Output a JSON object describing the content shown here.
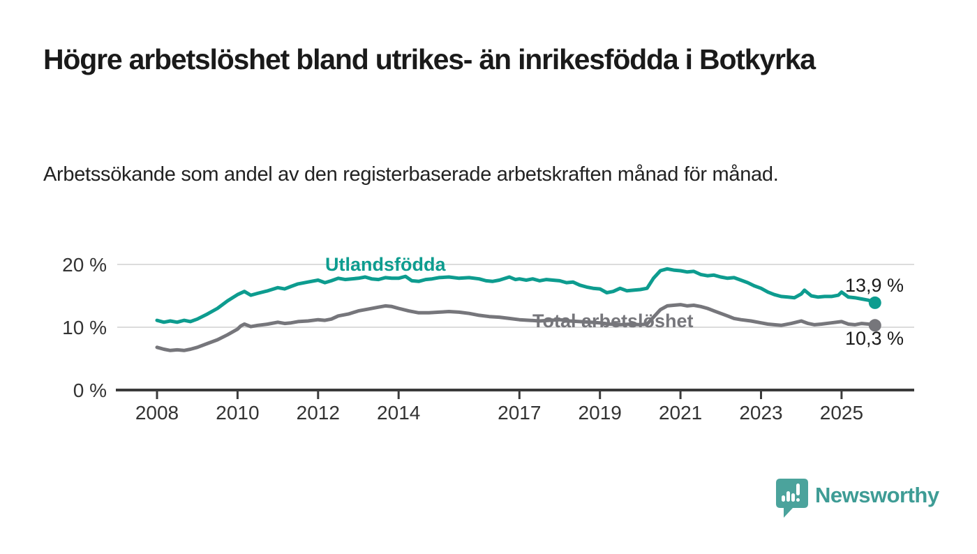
{
  "chart_data": {
    "type": "line",
    "title": "Högre arbetslöshet bland utrikes- än inrikesfödda i Botkyrka",
    "subtitle": "Arbetssökande som andel av den registerbaserade arbetskraften månad för månad.",
    "xlabel": "",
    "ylabel": "",
    "unit": "%",
    "ylim": [
      0,
      21.5
    ],
    "x_range": [
      2008.0,
      2025.83
    ],
    "grid": "horizontal",
    "legend_position": "inline-labels",
    "y_ticks": [
      {
        "value": 0,
        "label": "0 %"
      },
      {
        "value": 10,
        "label": "10 %"
      },
      {
        "value": 20,
        "label": "20 %"
      }
    ],
    "x_ticks": [
      {
        "year": 2008,
        "label": "2008"
      },
      {
        "year": 2010,
        "label": "2010"
      },
      {
        "year": 2012,
        "label": "2012"
      },
      {
        "year": 2014,
        "label": "2014"
      },
      {
        "year": 2017,
        "label": "2017"
      },
      {
        "year": 2019,
        "label": "2019"
      },
      {
        "year": 2021,
        "label": "2021"
      },
      {
        "year": 2023,
        "label": "2023"
      },
      {
        "year": 2025,
        "label": "2025"
      }
    ],
    "series": [
      {
        "name": "Utlandsfödda",
        "color": "#0d9c8f",
        "end_label": "13,9 %",
        "end_value": 13.9,
        "points": [
          [
            2008.0,
            11.1
          ],
          [
            2008.17,
            10.8
          ],
          [
            2008.33,
            11.0
          ],
          [
            2008.5,
            10.8
          ],
          [
            2008.67,
            11.1
          ],
          [
            2008.83,
            10.9
          ],
          [
            2009.0,
            11.3
          ],
          [
            2009.25,
            12.1
          ],
          [
            2009.5,
            13.0
          ],
          [
            2009.75,
            14.2
          ],
          [
            2010.0,
            15.2
          ],
          [
            2010.17,
            15.7
          ],
          [
            2010.33,
            15.1
          ],
          [
            2010.5,
            15.4
          ],
          [
            2010.75,
            15.8
          ],
          [
            2011.0,
            16.3
          ],
          [
            2011.17,
            16.1
          ],
          [
            2011.33,
            16.5
          ],
          [
            2011.5,
            16.9
          ],
          [
            2011.75,
            17.2
          ],
          [
            2012.0,
            17.5
          ],
          [
            2012.17,
            17.1
          ],
          [
            2012.33,
            17.4
          ],
          [
            2012.5,
            17.8
          ],
          [
            2012.67,
            17.6
          ],
          [
            2012.83,
            17.7
          ],
          [
            2013.0,
            17.8
          ],
          [
            2013.17,
            18.0
          ],
          [
            2013.33,
            17.7
          ],
          [
            2013.5,
            17.6
          ],
          [
            2013.67,
            17.9
          ],
          [
            2013.83,
            17.8
          ],
          [
            2014.0,
            17.8
          ],
          [
            2014.17,
            18.1
          ],
          [
            2014.33,
            17.4
          ],
          [
            2014.5,
            17.3
          ],
          [
            2014.67,
            17.6
          ],
          [
            2014.83,
            17.7
          ],
          [
            2015.0,
            17.9
          ],
          [
            2015.25,
            18.0
          ],
          [
            2015.5,
            17.8
          ],
          [
            2015.75,
            17.9
          ],
          [
            2016.0,
            17.7
          ],
          [
            2016.17,
            17.4
          ],
          [
            2016.33,
            17.3
          ],
          [
            2016.5,
            17.5
          ],
          [
            2016.75,
            18.0
          ],
          [
            2016.9,
            17.6
          ],
          [
            2017.0,
            17.7
          ],
          [
            2017.17,
            17.5
          ],
          [
            2017.33,
            17.7
          ],
          [
            2017.5,
            17.4
          ],
          [
            2017.67,
            17.6
          ],
          [
            2017.83,
            17.5
          ],
          [
            2018.0,
            17.4
          ],
          [
            2018.17,
            17.1
          ],
          [
            2018.33,
            17.2
          ],
          [
            2018.5,
            16.7
          ],
          [
            2018.67,
            16.4
          ],
          [
            2018.83,
            16.2
          ],
          [
            2019.0,
            16.1
          ],
          [
            2019.17,
            15.5
          ],
          [
            2019.33,
            15.7
          ],
          [
            2019.5,
            16.2
          ],
          [
            2019.67,
            15.8
          ],
          [
            2019.83,
            15.9
          ],
          [
            2020.0,
            16.0
          ],
          [
            2020.17,
            16.2
          ],
          [
            2020.33,
            17.8
          ],
          [
            2020.5,
            19.0
          ],
          [
            2020.67,
            19.3
          ],
          [
            2020.83,
            19.1
          ],
          [
            2021.0,
            19.0
          ],
          [
            2021.17,
            18.8
          ],
          [
            2021.33,
            18.9
          ],
          [
            2021.5,
            18.4
          ],
          [
            2021.67,
            18.2
          ],
          [
            2021.83,
            18.3
          ],
          [
            2022.0,
            18.0
          ],
          [
            2022.17,
            17.8
          ],
          [
            2022.33,
            17.9
          ],
          [
            2022.5,
            17.5
          ],
          [
            2022.67,
            17.1
          ],
          [
            2022.83,
            16.6
          ],
          [
            2023.0,
            16.2
          ],
          [
            2023.17,
            15.6
          ],
          [
            2023.33,
            15.2
          ],
          [
            2023.5,
            14.9
          ],
          [
            2023.67,
            14.8
          ],
          [
            2023.83,
            14.7
          ],
          [
            2024.0,
            15.3
          ],
          [
            2024.08,
            15.9
          ],
          [
            2024.25,
            15.0
          ],
          [
            2024.42,
            14.8
          ],
          [
            2024.58,
            14.9
          ],
          [
            2024.75,
            14.9
          ],
          [
            2024.92,
            15.1
          ],
          [
            2025.0,
            15.6
          ],
          [
            2025.17,
            14.8
          ],
          [
            2025.33,
            14.7
          ],
          [
            2025.5,
            14.5
          ],
          [
            2025.67,
            14.3
          ],
          [
            2025.83,
            13.9
          ]
        ]
      },
      {
        "name": "Total arbetslöshet",
        "color": "#76767b",
        "end_label": "10,3 %",
        "end_value": 10.3,
        "points": [
          [
            2008.0,
            6.8
          ],
          [
            2008.17,
            6.5
          ],
          [
            2008.33,
            6.3
          ],
          [
            2008.5,
            6.4
          ],
          [
            2008.67,
            6.3
          ],
          [
            2008.83,
            6.5
          ],
          [
            2009.0,
            6.8
          ],
          [
            2009.25,
            7.4
          ],
          [
            2009.5,
            8.0
          ],
          [
            2009.75,
            8.8
          ],
          [
            2010.0,
            9.7
          ],
          [
            2010.08,
            10.2
          ],
          [
            2010.17,
            10.5
          ],
          [
            2010.33,
            10.1
          ],
          [
            2010.5,
            10.3
          ],
          [
            2010.75,
            10.5
          ],
          [
            2011.0,
            10.8
          ],
          [
            2011.17,
            10.6
          ],
          [
            2011.33,
            10.7
          ],
          [
            2011.5,
            10.9
          ],
          [
            2011.75,
            11.0
          ],
          [
            2012.0,
            11.2
          ],
          [
            2012.17,
            11.1
          ],
          [
            2012.33,
            11.3
          ],
          [
            2012.5,
            11.8
          ],
          [
            2012.75,
            12.1
          ],
          [
            2013.0,
            12.6
          ],
          [
            2013.25,
            12.9
          ],
          [
            2013.5,
            13.2
          ],
          [
            2013.67,
            13.4
          ],
          [
            2013.83,
            13.3
          ],
          [
            2014.0,
            13.0
          ],
          [
            2014.25,
            12.6
          ],
          [
            2014.5,
            12.3
          ],
          [
            2014.75,
            12.3
          ],
          [
            2015.0,
            12.4
          ],
          [
            2015.25,
            12.5
          ],
          [
            2015.5,
            12.4
          ],
          [
            2015.75,
            12.2
          ],
          [
            2016.0,
            11.9
          ],
          [
            2016.25,
            11.7
          ],
          [
            2016.5,
            11.6
          ],
          [
            2016.75,
            11.4
          ],
          [
            2017.0,
            11.2
          ],
          [
            2017.25,
            11.1
          ],
          [
            2017.5,
            11.0
          ],
          [
            2017.75,
            11.1
          ],
          [
            2018.0,
            11.2
          ],
          [
            2018.25,
            11.0
          ],
          [
            2018.5,
            10.9
          ],
          [
            2018.75,
            10.8
          ],
          [
            2019.0,
            10.7
          ],
          [
            2019.25,
            10.5
          ],
          [
            2019.5,
            10.4
          ],
          [
            2019.75,
            10.5
          ],
          [
            2020.0,
            10.4
          ],
          [
            2020.17,
            10.5
          ],
          [
            2020.33,
            11.6
          ],
          [
            2020.5,
            12.8
          ],
          [
            2020.67,
            13.4
          ],
          [
            2020.83,
            13.5
          ],
          [
            2021.0,
            13.6
          ],
          [
            2021.17,
            13.4
          ],
          [
            2021.33,
            13.5
          ],
          [
            2021.5,
            13.3
          ],
          [
            2021.67,
            13.0
          ],
          [
            2021.83,
            12.6
          ],
          [
            2022.0,
            12.2
          ],
          [
            2022.17,
            11.8
          ],
          [
            2022.33,
            11.4
          ],
          [
            2022.5,
            11.2
          ],
          [
            2022.75,
            11.0
          ],
          [
            2023.0,
            10.7
          ],
          [
            2023.17,
            10.5
          ],
          [
            2023.33,
            10.4
          ],
          [
            2023.5,
            10.3
          ],
          [
            2023.75,
            10.6
          ],
          [
            2024.0,
            11.0
          ],
          [
            2024.17,
            10.6
          ],
          [
            2024.33,
            10.4
          ],
          [
            2024.5,
            10.5
          ],
          [
            2024.75,
            10.7
          ],
          [
            2025.0,
            10.9
          ],
          [
            2025.17,
            10.5
          ],
          [
            2025.33,
            10.4
          ],
          [
            2025.5,
            10.6
          ],
          [
            2025.67,
            10.5
          ],
          [
            2025.83,
            10.3
          ]
        ]
      }
    ],
    "colors": {
      "grid": "#dcdcdc",
      "axis": "#3b3b3b",
      "tick_text": "#333333",
      "value_label_text": "#1a1a1a"
    }
  },
  "footer": {
    "brand": "Newsworthy",
    "logo_icon": "bar-chart-speech-bubble-icon",
    "brand_text_color": "#3e9c95",
    "logo_color": "#4ba39c"
  }
}
